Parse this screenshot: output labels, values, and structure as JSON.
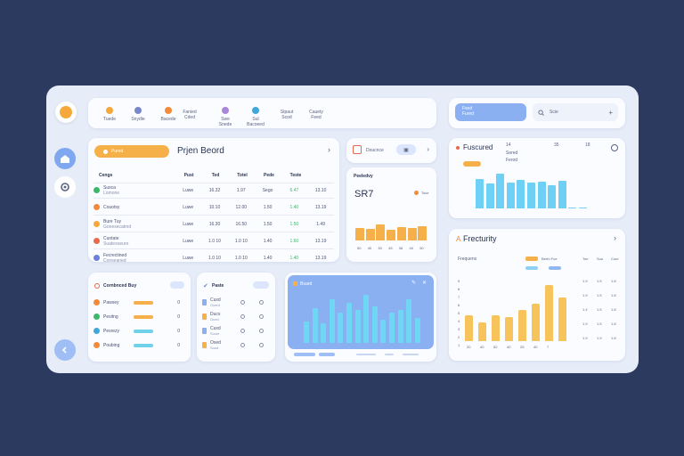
{
  "nav": {
    "items": [
      {
        "label": "Tuede",
        "color": "#f6a83a"
      },
      {
        "label": "Snydie",
        "color": "#7a87c9"
      },
      {
        "label": "Bacede",
        "color": "#f28a3a"
      },
      {
        "label": "Fanied",
        "label2": "Cded"
      },
      {
        "label": "Swe",
        "label2": "Snede",
        "color": "#a986d9"
      },
      {
        "label": "Sul",
        "label2": "Bacoeed",
        "color": "#3fa7d9"
      },
      {
        "label": "Stpaut",
        "label2": "Scod"
      },
      {
        "label": "Cauety",
        "label2": "Feed"
      }
    ]
  },
  "search": {
    "button_label": "Fsed",
    "button_sub": "Fured",
    "query": "Scie",
    "icon_plus": "+"
  },
  "project": {
    "tab_label": "Pured",
    "title": "Prjen Beord",
    "chevron": "›",
    "headers": [
      "Cengs",
      "Pust",
      "Ted",
      "Totel",
      "Pede",
      "Teste"
    ],
    "rows": [
      {
        "name": "Susca",
        "sub": "Lomone",
        "color": "#3db86a",
        "cols": [
          "Luwe",
          "16.32",
          "1.97",
          "Sego",
          "6.47",
          "13.10"
        ]
      },
      {
        "name": "Couotsy",
        "sub": "",
        "color": "#f28a3a",
        "cols": [
          "Luwe",
          "10.10",
          "12.00",
          "1.50",
          "1.40",
          "13.19"
        ]
      },
      {
        "name": "Bure Tuy",
        "sub": "Gonesecatmd",
        "color": "#f6a83a",
        "cols": [
          "Luwe",
          "16.30",
          "16.50",
          "1.50",
          "1.50",
          "1.49"
        ]
      },
      {
        "name": "Cuntate",
        "sub": "Suatesoeure",
        "color": "#e86a4a",
        "cols": [
          "Luwe",
          "1.0 10",
          "1.0 10",
          "1.40",
          "1.60",
          "13.19"
        ]
      },
      {
        "name": "Fecrectined",
        "sub": "Conseaned",
        "color": "#6a7fd9",
        "cols": [
          "Luwe",
          "1.0 10",
          "1.0 10",
          "1.40",
          "1.40",
          "13.19"
        ]
      }
    ]
  },
  "small_card": {
    "label": "Doucnce",
    "icon": "▣"
  },
  "productivity": {
    "title": "Peeledvy",
    "value": "SR7",
    "tag": "Toce",
    "xlabels": [
      "50",
      "40",
      "30",
      "45",
      "36",
      "40",
      "50"
    ]
  },
  "featured": {
    "title": "Fuscured",
    "legend": [
      "Sered",
      "Ferod"
    ],
    "ticks": [
      "14",
      "35",
      "18"
    ],
    "badge": "Suend"
  },
  "frequency": {
    "title": "Frecturity",
    "sub": "Frequens",
    "legend_tag": "Berfo Foe",
    "cols": [
      "Toe",
      "Suo",
      "Cour"
    ],
    "y_ticks": [
      "9",
      "8",
      "7",
      "6",
      "5",
      "4",
      "3",
      "2",
      "1"
    ],
    "rows": [
      [
        "1.9",
        "1.5",
        "1.8"
      ],
      [
        "1.9",
        "1.5",
        "1.8"
      ],
      [
        "1.4",
        "1.5",
        "1.8"
      ],
      [
        "1.9",
        "1.5",
        "1.8"
      ],
      [
        "1.9",
        "1.9",
        "1.8"
      ]
    ],
    "x_labels": [
      "20",
      "40",
      "52",
      "40",
      "25",
      "40",
      "7"
    ]
  },
  "combined": {
    "title": "Cornbnced Buy",
    "items": [
      {
        "label": "Pawsey",
        "color": "#f28a3a",
        "bar": "#f6b04a",
        "val": "0"
      },
      {
        "label": "Pesitng",
        "color": "#3db86a",
        "bar": "#f6b04a",
        "val": "0"
      },
      {
        "label": "Pesrezy",
        "color": "#3fa7d9",
        "bar": "#6fd0ea",
        "val": "0"
      },
      {
        "label": "Poubing",
        "color": "#f28a3a",
        "bar": "#6fd0ea",
        "val": "0"
      }
    ]
  },
  "paste": {
    "title": "Paste",
    "items": [
      {
        "label": "Cuxd",
        "sub": "Oxerd"
      },
      {
        "label": "Ducx",
        "sub": "Ouxd"
      },
      {
        "label": "Cuxd",
        "sub": "Suxer"
      },
      {
        "label": "Oxed",
        "sub": "Suod"
      }
    ]
  },
  "board": {
    "title": "Board"
  },
  "colors": {
    "accent": "#7fa8f0",
    "orange": "#f6b04a",
    "blue": "#6fd0f5"
  }
}
